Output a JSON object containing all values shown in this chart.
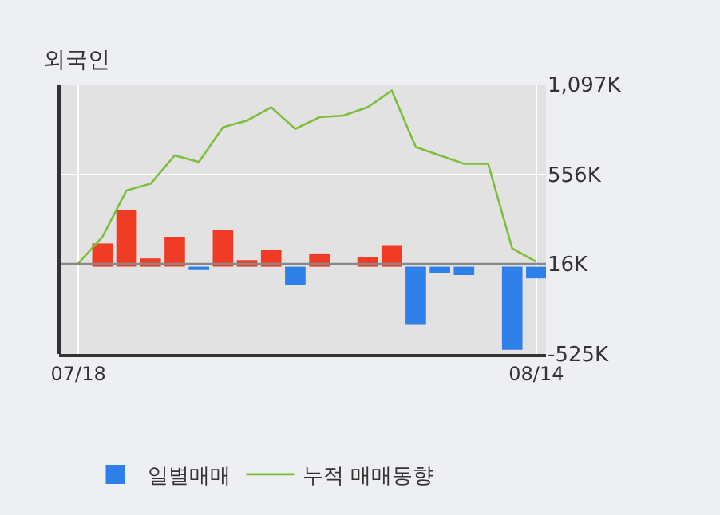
{
  "chart_data": {
    "type": "bar",
    "title": "외국인",
    "categories": [
      "07/18",
      null,
      null,
      null,
      null,
      null,
      null,
      null,
      null,
      null,
      null,
      null,
      null,
      null,
      null,
      null,
      null,
      null,
      null,
      "08/14"
    ],
    "series": [
      {
        "name": "일별매매",
        "values": [
          null,
          140,
          340,
          50,
          180,
          -20,
          220,
          40,
          100,
          -110,
          80,
          null,
          60,
          130,
          -350,
          -40,
          -50,
          null,
          -500,
          -70
        ],
        "colors": [
          "#2f7fe8",
          "#f03c24",
          "#f03c24",
          "#f03c24",
          "#f03c24",
          "#2f7fe8",
          "#f03c24",
          "#f03c24",
          "#f03c24",
          "#2f7fe8",
          "#f03c24",
          "#f03c24",
          "#f03c24",
          "#f03c24",
          "#2f7fe8",
          "#2f7fe8",
          "#2f7fe8",
          "#2f7fe8",
          "#2f7fe8",
          "#2f7fe8"
        ]
      },
      {
        "name": "누적 매매동향",
        "type": "line",
        "color": "#7bbf3a",
        "values": [
          20,
          180,
          460,
          500,
          670,
          630,
          840,
          880,
          960,
          830,
          900,
          910,
          960,
          1060,
          720,
          670,
          620,
          620,
          110,
          30
        ]
      }
    ],
    "ylim": [
      -525,
      1097
    ],
    "yticks": [
      {
        "value": 1097,
        "label": "1,097K"
      },
      {
        "value": 556,
        "label": "556K"
      },
      {
        "value": 16,
        "label": "16K"
      },
      {
        "value": -525,
        "label": "-525K"
      }
    ],
    "ref_lines": [
      {
        "axis": "y",
        "value": 16,
        "color": "#888888"
      }
    ],
    "grid": true,
    "legend": "bottom",
    "marker": "none"
  }
}
